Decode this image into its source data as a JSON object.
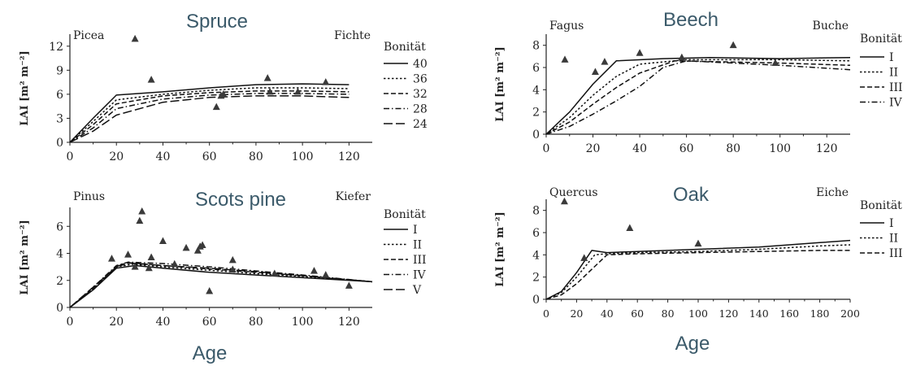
{
  "footer": {
    "age_left": "Age",
    "age_right": "Age"
  },
  "chart_data": [
    {
      "type": "line",
      "title": "Spruce",
      "latin_label": "Picea",
      "german_label": "Fichte",
      "ylabel": "LAI [m² m⁻²]",
      "xlabel": "",
      "xlim": [
        0,
        130
      ],
      "ylim": [
        0,
        13.5
      ],
      "xticks": [
        0,
        20,
        40,
        60,
        80,
        100,
        120
      ],
      "yticks": [
        0,
        3,
        6,
        9,
        12
      ],
      "legend_title": "Bonität",
      "legend_position": "right",
      "series": [
        {
          "name": "40",
          "dash": "solid",
          "points": [
            [
              0,
              0
            ],
            [
              10,
              3
            ],
            [
              20,
              5.9
            ],
            [
              40,
              6.3
            ],
            [
              60,
              6.8
            ],
            [
              80,
              7.2
            ],
            [
              100,
              7.3
            ],
            [
              120,
              7.2
            ]
          ]
        },
        {
          "name": "36",
          "dash": "short",
          "points": [
            [
              0,
              0
            ],
            [
              10,
              2.6
            ],
            [
              20,
              5.3
            ],
            [
              40,
              6.0
            ],
            [
              60,
              6.5
            ],
            [
              80,
              6.8
            ],
            [
              100,
              6.8
            ],
            [
              120,
              6.7
            ]
          ]
        },
        {
          "name": "32",
          "dash": "medium",
          "points": [
            [
              0,
              0
            ],
            [
              10,
              2.2
            ],
            [
              20,
              4.8
            ],
            [
              40,
              5.8
            ],
            [
              60,
              6.2
            ],
            [
              80,
              6.4
            ],
            [
              100,
              6.4
            ],
            [
              120,
              6.3
            ]
          ]
        },
        {
          "name": "28",
          "dash": "dashdot",
          "points": [
            [
              0,
              0
            ],
            [
              10,
              1.8
            ],
            [
              20,
              4.2
            ],
            [
              40,
              5.4
            ],
            [
              60,
              5.9
            ],
            [
              80,
              6.1
            ],
            [
              100,
              6.1
            ],
            [
              120,
              6.0
            ]
          ]
        },
        {
          "name": "24",
          "dash": "longdash",
          "points": [
            [
              0,
              0
            ],
            [
              10,
              1.4
            ],
            [
              20,
              3.4
            ],
            [
              40,
              5.0
            ],
            [
              60,
              5.6
            ],
            [
              80,
              5.8
            ],
            [
              100,
              5.8
            ],
            [
              120,
              5.6
            ]
          ]
        }
      ],
      "observations": [
        [
          28,
          12.9
        ],
        [
          35,
          7.8
        ],
        [
          63,
          4.4
        ],
        [
          65,
          5.8
        ],
        [
          66,
          6.0
        ],
        [
          85,
          8.0
        ],
        [
          86,
          6.3
        ],
        [
          98,
          6.3
        ],
        [
          110,
          7.5
        ]
      ]
    },
    {
      "type": "line",
      "title": "Beech",
      "latin_label": "Fagus",
      "german_label": "Buche",
      "ylabel": "LAI [m² m⁻²]",
      "xlabel": "",
      "xlim": [
        0,
        130
      ],
      "ylim": [
        0,
        9
      ],
      "xticks": [
        0,
        20,
        40,
        60,
        80,
        100,
        120
      ],
      "yticks": [
        0,
        2,
        4,
        6,
        8
      ],
      "legend_title": "Bonität",
      "legend_position": "right",
      "series": [
        {
          "name": "I",
          "dash": "solid",
          "points": [
            [
              0,
              0
            ],
            [
              10,
              2
            ],
            [
              20,
              4.5
            ],
            [
              30,
              6.6
            ],
            [
              50,
              6.8
            ],
            [
              70,
              6.9
            ],
            [
              100,
              6.8
            ],
            [
              130,
              6.9
            ]
          ]
        },
        {
          "name": "II",
          "dash": "short",
          "points": [
            [
              0,
              0
            ],
            [
              10,
              1.5
            ],
            [
              20,
              3.5
            ],
            [
              30,
              5.2
            ],
            [
              40,
              6.3
            ],
            [
              60,
              6.7
            ],
            [
              100,
              6.7
            ],
            [
              130,
              6.6
            ]
          ]
        },
        {
          "name": "III",
          "dash": "medium",
          "points": [
            [
              0,
              0
            ],
            [
              10,
              1.1
            ],
            [
              20,
              2.7
            ],
            [
              30,
              4.2
            ],
            [
              40,
              5.5
            ],
            [
              55,
              6.6
            ],
            [
              100,
              6.4
            ],
            [
              130,
              6.2
            ]
          ]
        },
        {
          "name": "IV",
          "dash": "dashdot",
          "points": [
            [
              0,
              0
            ],
            [
              10,
              0.7
            ],
            [
              20,
              1.8
            ],
            [
              30,
              3.0
            ],
            [
              40,
              4.3
            ],
            [
              50,
              6.0
            ],
            [
              60,
              6.6
            ],
            [
              100,
              6.2
            ],
            [
              130,
              5.8
            ]
          ]
        }
      ],
      "observations": [
        [
          8,
          6.7
        ],
        [
          21,
          5.6
        ],
        [
          25,
          6.5
        ],
        [
          40,
          7.3
        ],
        [
          58,
          6.9
        ],
        [
          80,
          8.0
        ],
        [
          98,
          6.4
        ]
      ]
    },
    {
      "type": "line",
      "title": "Scots pine",
      "latin_label": "Pinus",
      "german_label": "Kiefer",
      "ylabel": "LAI [m² m⁻²]",
      "xlabel": "",
      "xlim": [
        0,
        130
      ],
      "ylim": [
        0,
        7.4
      ],
      "xticks": [
        0,
        20,
        40,
        60,
        80,
        100,
        120
      ],
      "yticks": [
        0,
        2,
        4,
        6
      ],
      "legend_title": "Bonität",
      "legend_position": "right",
      "series": [
        {
          "name": "I",
          "dash": "solid",
          "points": [
            [
              0,
              0
            ],
            [
              10,
              1.3
            ],
            [
              20,
              2.9
            ],
            [
              28,
              3.1
            ],
            [
              40,
              2.9
            ],
            [
              60,
              2.6
            ],
            [
              80,
              2.4
            ],
            [
              100,
              2.2
            ],
            [
              130,
              1.9
            ]
          ]
        },
        {
          "name": "II",
          "dash": "short",
          "points": [
            [
              0,
              0
            ],
            [
              10,
              1.4
            ],
            [
              20,
              3.0
            ],
            [
              27,
              3.2
            ],
            [
              40,
              3.0
            ],
            [
              60,
              2.75
            ],
            [
              80,
              2.5
            ],
            [
              100,
              2.3
            ],
            [
              130,
              1.9
            ]
          ]
        },
        {
          "name": "III",
          "dash": "medium",
          "points": [
            [
              0,
              0
            ],
            [
              10,
              1.4
            ],
            [
              20,
              3.0
            ],
            [
              26,
              3.3
            ],
            [
              40,
              3.1
            ],
            [
              60,
              2.85
            ],
            [
              80,
              2.6
            ],
            [
              100,
              2.35
            ],
            [
              130,
              1.9
            ]
          ]
        },
        {
          "name": "IV",
          "dash": "dashdot",
          "points": [
            [
              0,
              0
            ],
            [
              10,
              1.5
            ],
            [
              20,
              3.1
            ],
            [
              25,
              3.35
            ],
            [
              40,
              3.25
            ],
            [
              60,
              3.0
            ],
            [
              80,
              2.7
            ],
            [
              100,
              2.4
            ],
            [
              130,
              1.9
            ]
          ]
        },
        {
          "name": "V",
          "dash": "longdash",
          "points": [
            [
              0,
              0
            ],
            [
              10,
              1.5
            ],
            [
              20,
              3.0
            ],
            [
              24,
              3.3
            ],
            [
              40,
              3.1
            ],
            [
              60,
              2.9
            ],
            [
              80,
              2.65
            ],
            [
              100,
              2.35
            ],
            [
              130,
              1.9
            ]
          ]
        }
      ],
      "observations": [
        [
          18,
          3.6
        ],
        [
          25,
          3.9
        ],
        [
          28,
          3.0
        ],
        [
          30,
          6.4
        ],
        [
          31,
          7.1
        ],
        [
          34,
          2.9
        ],
        [
          35,
          3.7
        ],
        [
          40,
          4.9
        ],
        [
          45,
          3.2
        ],
        [
          50,
          4.4
        ],
        [
          55,
          4.2
        ],
        [
          56,
          4.5
        ],
        [
          57,
          4.6
        ],
        [
          60,
          1.2
        ],
        [
          70,
          3.5
        ],
        [
          70,
          2.8
        ],
        [
          88,
          2.5
        ],
        [
          105,
          2.7
        ],
        [
          110,
          2.4
        ],
        [
          120,
          1.6
        ]
      ]
    },
    {
      "type": "line",
      "title": "Oak",
      "latin_label": "Quercus",
      "german_label": "Eiche",
      "ylabel": "LAI [m² m⁻²]",
      "xlabel": "",
      "xlim": [
        0,
        200
      ],
      "ylim": [
        0,
        9
      ],
      "xticks": [
        0,
        20,
        40,
        60,
        80,
        100,
        120,
        140,
        160,
        180,
        200
      ],
      "yticks": [
        0,
        2,
        4,
        6,
        8
      ],
      "legend_title": "Bonität",
      "legend_position": "right",
      "series": [
        {
          "name": "I",
          "dash": "solid",
          "points": [
            [
              0,
              0
            ],
            [
              10,
              0.7
            ],
            [
              20,
              2.4
            ],
            [
              30,
              4.4
            ],
            [
              40,
              4.2
            ],
            [
              60,
              4.3
            ],
            [
              100,
              4.5
            ],
            [
              140,
              4.7
            ],
            [
              180,
              5.1
            ],
            [
              200,
              5.3
            ]
          ]
        },
        {
          "name": "II",
          "dash": "short",
          "points": [
            [
              0,
              0
            ],
            [
              10,
              0.6
            ],
            [
              20,
              2.0
            ],
            [
              32,
              4.0
            ],
            [
              40,
              4.1
            ],
            [
              60,
              4.2
            ],
            [
              100,
              4.3
            ],
            [
              140,
              4.5
            ],
            [
              180,
              4.8
            ],
            [
              200,
              4.9
            ]
          ]
        },
        {
          "name": "III",
          "dash": "medium",
          "points": [
            [
              0,
              0
            ],
            [
              10,
              0.4
            ],
            [
              20,
              1.4
            ],
            [
              30,
              2.7
            ],
            [
              40,
              4.0
            ],
            [
              60,
              4.1
            ],
            [
              100,
              4.2
            ],
            [
              140,
              4.3
            ],
            [
              180,
              4.4
            ],
            [
              200,
              4.4
            ]
          ]
        }
      ],
      "observations": [
        [
          12,
          8.8
        ],
        [
          25,
          3.7
        ],
        [
          55,
          6.4
        ],
        [
          100,
          5.0
        ]
      ]
    }
  ]
}
